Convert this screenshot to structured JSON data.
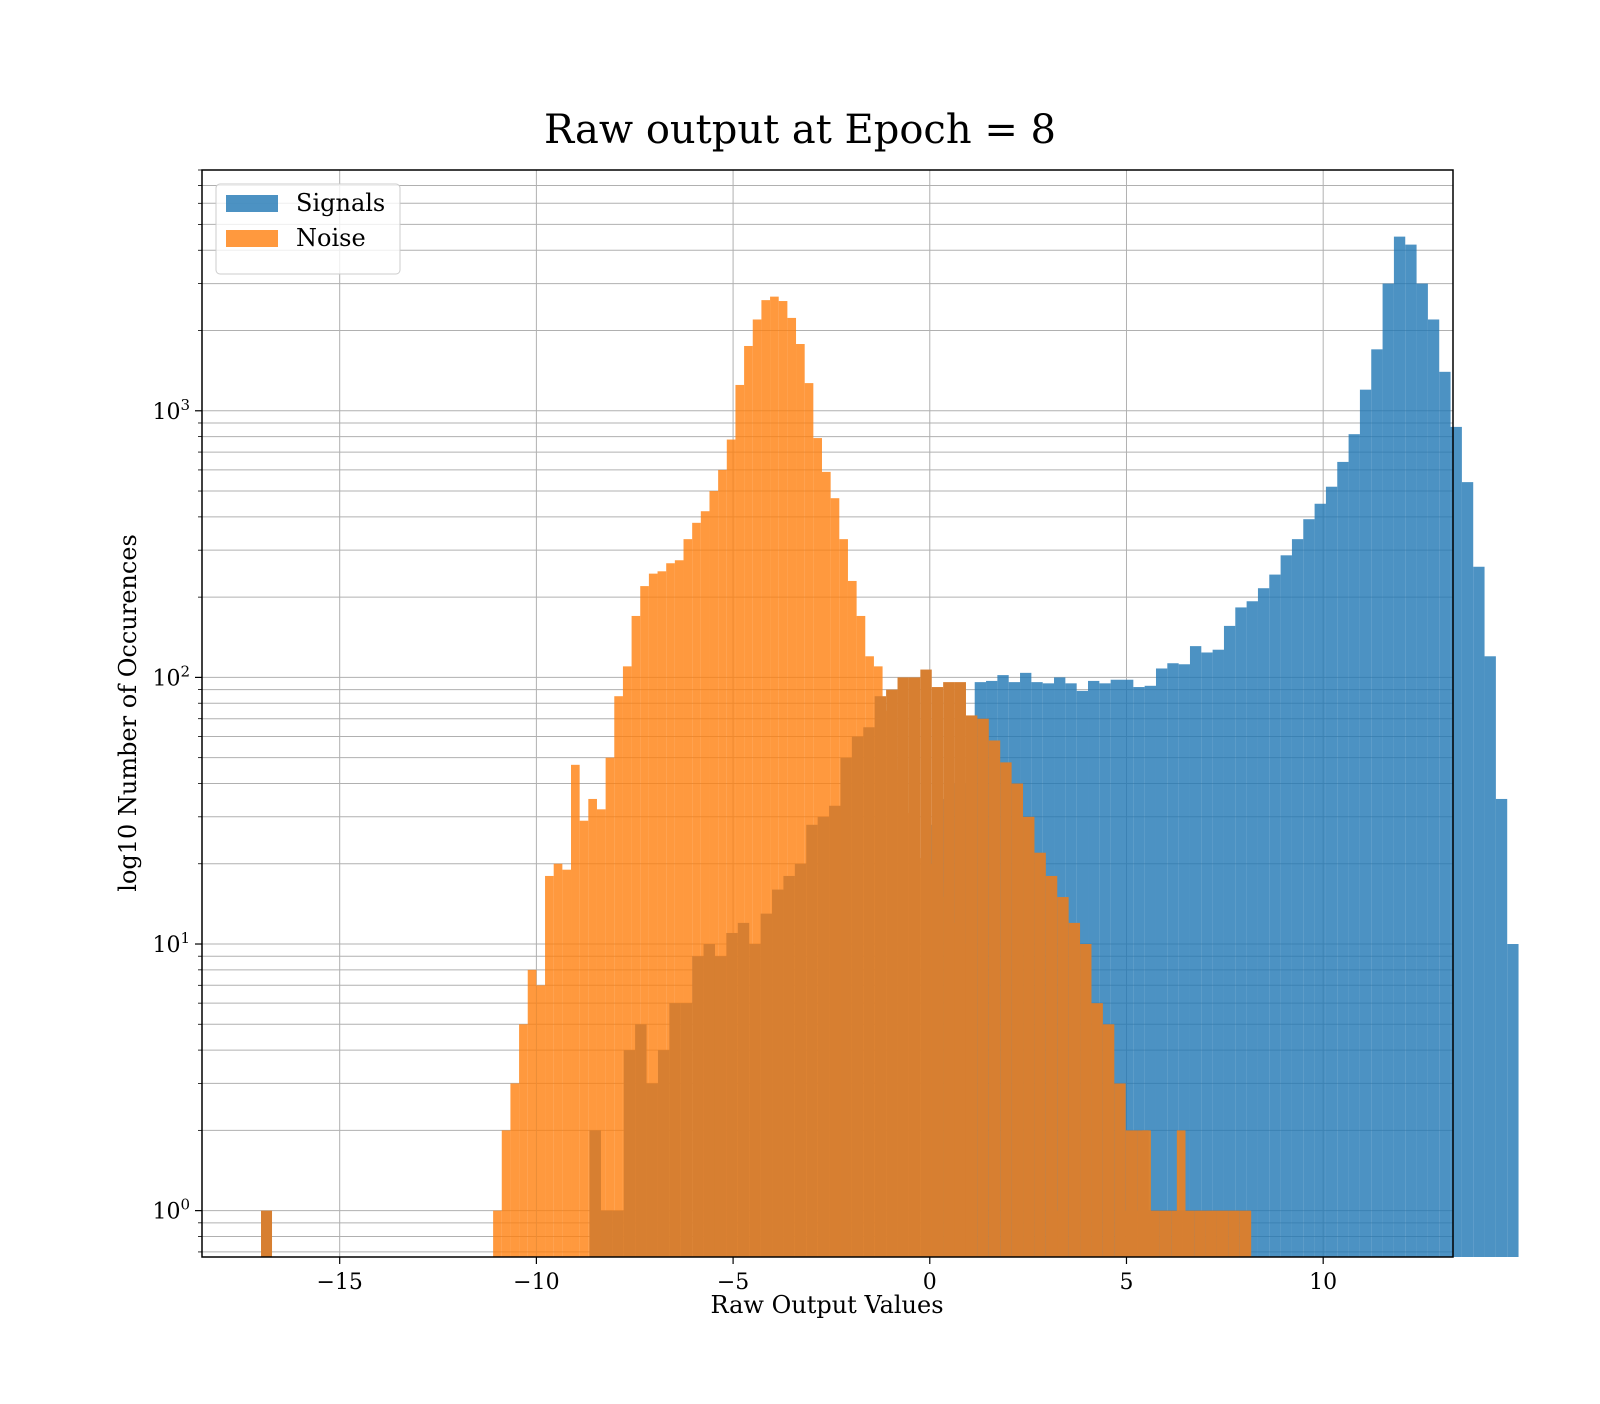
{
  "chart_data": {
    "type": "bar",
    "subtype": "histogram",
    "title": "Raw output at Epoch = 8",
    "xlabel": "Raw Output Values",
    "ylabel": "log10 Number of Occurences",
    "xlim": [
      -18.5,
      13.3
    ],
    "ylim": [
      0.67,
      8000
    ],
    "yscale": "log",
    "grid": true,
    "legend_position": "top-left",
    "x_ticks": [
      -15,
      -10,
      -5,
      0,
      5,
      10
    ],
    "x_tick_labels": [
      "−15",
      "−10",
      "−5",
      "0",
      "5",
      "10"
    ],
    "y_ticks": [
      {
        "value": 1,
        "base": "10",
        "exp": "0"
      },
      {
        "value": 10,
        "base": "10",
        "exp": "1"
      },
      {
        "value": 100,
        "base": "10",
        "exp": "2"
      },
      {
        "value": 1000,
        "base": "10",
        "exp": "3"
      }
    ],
    "series": [
      {
        "name": "Signals",
        "color": "#1f77b4",
        "alpha": 0.8,
        "bin_start": -8.65,
        "bin_width": 0.288,
        "values": [
          2,
          1,
          0,
          0,
          0,
          0,
          0,
          0,
          0,
          0,
          0,
          0,
          0,
          0,
          0,
          0,
          0,
          0,
          0,
          0,
          0,
          0,
          0,
          0,
          0,
          0,
          0,
          0,
          0,
          0,
          28,
          35,
          40,
          40,
          96,
          97,
          102,
          96,
          104,
          96,
          95,
          100,
          95,
          89,
          97,
          95,
          98,
          98,
          92,
          93,
          108,
          113,
          112,
          131,
          124,
          127,
          156,
          183,
          193,
          216,
          243,
          287,
          330,
          392,
          448,
          519,
          643,
          817,
          1200,
          1700,
          3000,
          4500,
          4200,
          3000,
          2200,
          1400,
          870,
          540,
          260,
          120,
          35,
          10,
          0
        ]
      },
      {
        "name": "Noise",
        "color": "#ff7f0e",
        "alpha": 0.8,
        "bin_start": -11.1,
        "bin_width": 0.22,
        "values": [
          1,
          2,
          3,
          5,
          8,
          7,
          18,
          20,
          19,
          47,
          29,
          35,
          32,
          50,
          85,
          110,
          170,
          220,
          245,
          250,
          268,
          275,
          330,
          380,
          420,
          500,
          600,
          780,
          1250,
          1750,
          2200,
          2600,
          2680,
          2580,
          2230,
          1780,
          1270,
          790,
          590,
          470,
          330,
          230,
          170,
          120,
          110,
          75,
          45,
          40,
          31,
          21,
          20,
          17,
          15,
          12,
          10,
          0,
          0,
          0,
          0,
          0,
          0,
          0,
          0,
          0,
          3,
          1,
          0,
          0,
          0,
          0,
          0,
          0,
          2,
          1,
          1,
          2,
          0,
          0,
          0,
          2
        ]
      },
      {
        "name": "",
        "color": "#d77f31",
        "alpha": 1.0,
        "bin_start": -8.65,
        "bin_width": 0.29,
        "values": [
          2,
          1,
          1,
          4,
          5,
          3,
          4,
          6,
          6,
          9,
          10,
          9,
          11,
          12,
          10,
          13,
          16,
          18,
          20,
          28,
          30,
          33,
          50,
          60,
          65,
          85,
          90,
          100,
          100,
          107,
          92,
          96,
          96,
          72,
          70,
          58,
          48,
          40,
          30,
          22,
          18,
          15,
          12,
          10,
          6,
          5,
          3,
          2,
          2,
          1,
          1,
          1,
          1,
          1,
          1,
          1,
          1,
          1,
          0
        ]
      },
      {
        "name": "",
        "color": "#d77f31",
        "alpha": 1.0,
        "bin_start": -17.0,
        "bin_width": 0.28,
        "values": [
          1
        ]
      }
    ]
  }
}
